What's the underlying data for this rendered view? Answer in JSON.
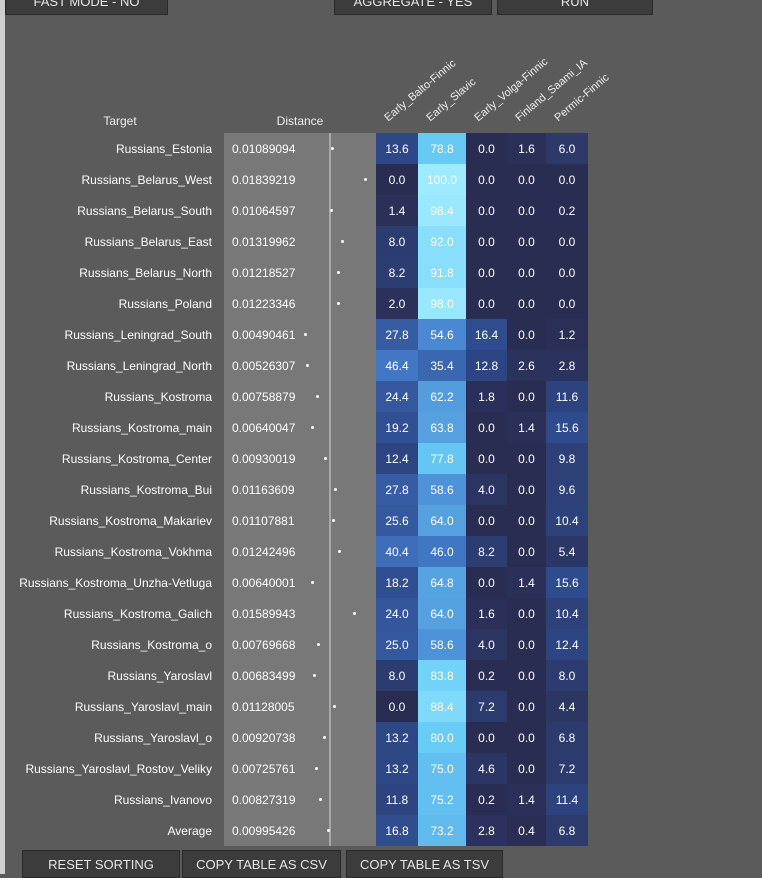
{
  "buttons_top": [
    "FAST MODE - NO",
    "AGGREGATE - YES",
    "RUN"
  ],
  "table": {
    "headers": [
      "Target",
      "Distance",
      "Early_Balto-Finnic",
      "Early_Slavic",
      "Early_Volga-Finnic",
      "Finland_Saami_IA",
      "Permic-Finnic"
    ],
    "rows": [
      [
        "Russians_Estonia",
        "0.01089094",
        "13.6",
        "78.8",
        "0.0",
        "1.6",
        "6.0"
      ],
      [
        "Russians_Belarus_West",
        "0.01839219",
        "0.0",
        "100.0",
        "0.0",
        "0.0",
        "0.0"
      ],
      [
        "Russians_Belarus_South",
        "0.01064597",
        "1.4",
        "98.4",
        "0.0",
        "0.0",
        "0.2"
      ],
      [
        "Russians_Belarus_East",
        "0.01319962",
        "8.0",
        "92.0",
        "0.0",
        "0.0",
        "0.0"
      ],
      [
        "Russians_Belarus_North",
        "0.01218527",
        "8.2",
        "91.8",
        "0.0",
        "0.0",
        "0.0"
      ],
      [
        "Russians_Poland",
        "0.01223346",
        "2.0",
        "98.0",
        "0.0",
        "0.0",
        "0.0"
      ],
      [
        "Russians_Leningrad_South",
        "0.00490461",
        "27.8",
        "54.6",
        "16.4",
        "0.0",
        "1.2"
      ],
      [
        "Russians_Leningrad_North",
        "0.00526307",
        "46.4",
        "35.4",
        "12.8",
        "2.6",
        "2.8"
      ],
      [
        "Russians_Kostroma",
        "0.00758879",
        "24.4",
        "62.2",
        "1.8",
        "0.0",
        "11.6"
      ],
      [
        "Russians_Kostroma_main",
        "0.00640047",
        "19.2",
        "63.8",
        "0.0",
        "1.4",
        "15.6"
      ],
      [
        "Russians_Kostroma_Center",
        "0.00930019",
        "12.4",
        "77.8",
        "0.0",
        "0.0",
        "9.8"
      ],
      [
        "Russians_Kostroma_Bui",
        "0.01163609",
        "27.8",
        "58.6",
        "4.0",
        "0.0",
        "9.6"
      ],
      [
        "Russians_Kostroma_Makariev",
        "0.01107881",
        "25.6",
        "64.0",
        "0.0",
        "0.0",
        "10.4"
      ],
      [
        "Russians_Kostroma_Vokhma",
        "0.01242496",
        "40.4",
        "46.0",
        "8.2",
        "0.0",
        "5.4"
      ],
      [
        "Russians_Kostroma_Unzha-Vetluga",
        "0.00640001",
        "18.2",
        "64.8",
        "0.0",
        "1.4",
        "15.6"
      ],
      [
        "Russians_Kostroma_Galich",
        "0.01589943",
        "24.0",
        "64.0",
        "1.6",
        "0.0",
        "10.4"
      ],
      [
        "Russians_Kostroma_o",
        "0.00769668",
        "25.0",
        "58.6",
        "4.0",
        "0.0",
        "12.4"
      ],
      [
        "Russians_Yaroslavl",
        "0.00683499",
        "8.0",
        "83.8",
        "0.2",
        "0.0",
        "8.0"
      ],
      [
        "Russians_Yaroslavl_main",
        "0.01128005",
        "0.0",
        "88.4",
        "7.2",
        "0.0",
        "4.4"
      ],
      [
        "Russians_Yaroslavl_o",
        "0.00920738",
        "13.2",
        "80.0",
        "0.0",
        "0.0",
        "6.8"
      ],
      [
        "Russians_Yaroslavl_Rostov_Veliky",
        "0.00725761",
        "13.2",
        "75.0",
        "4.6",
        "0.0",
        "7.2"
      ],
      [
        "Russians_Ivanovo",
        "0.00827319",
        "11.8",
        "75.2",
        "0.2",
        "1.4",
        "11.4"
      ],
      [
        "Average",
        "0.00995426",
        "16.8",
        "73.2",
        "2.8",
        "0.4",
        "6.8"
      ]
    ]
  },
  "buttons_bottom": [
    "RESET SORTING",
    "COPY TABLE AS CSV",
    "COPY TABLE AS TSV"
  ]
}
